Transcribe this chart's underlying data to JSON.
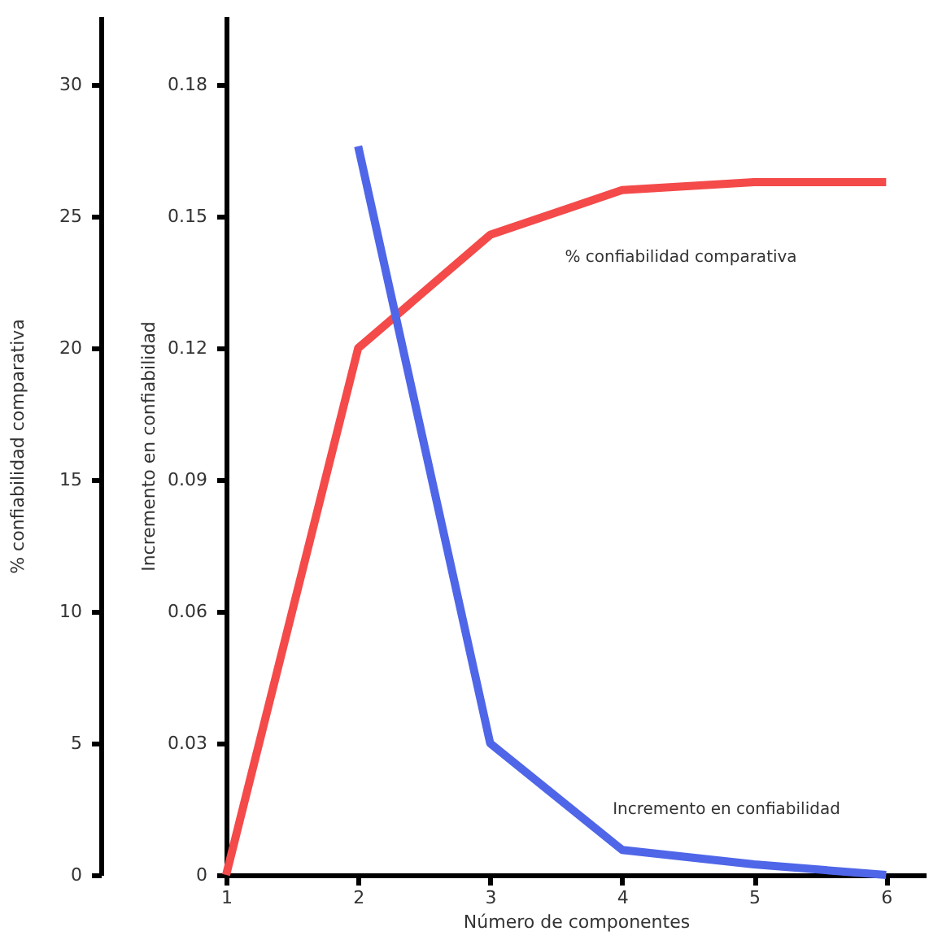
{
  "chart_data": {
    "type": "line",
    "x": [
      1,
      2,
      3,
      4,
      5,
      6
    ],
    "xlabel": "Número de componentes",
    "ylabel": "% confiabilidad comparativa",
    "y2label": "Incremento en confiabilidad",
    "series": [
      {
        "name": "% confiabilidad comparativa",
        "color": "#f44a4a",
        "values": [
          0,
          20,
          24.3,
          26.0,
          26.3,
          26.3
        ]
      },
      {
        "name": "Incremento en confiabilidad",
        "color": "#4f66e8",
        "axis": "y2",
        "x": [
          2,
          3,
          4,
          5,
          6
        ],
        "values": [
          0.166,
          0.03,
          0.0057,
          0.0024,
          0
        ]
      }
    ],
    "xlim": [
      1,
      6.3
    ],
    "xticks": [
      1,
      2,
      3,
      4,
      5,
      6
    ],
    "ylim": [
      0,
      32.6
    ],
    "yticks": [
      0,
      5,
      10,
      15,
      20,
      25,
      30
    ],
    "y2lim": [
      0,
      0.1956
    ],
    "y2ticks": [
      0,
      0.03,
      0.06,
      0.09,
      0.12,
      0.15,
      0.18
    ],
    "grid": false,
    "marker": "none",
    "line_style": "solid"
  }
}
